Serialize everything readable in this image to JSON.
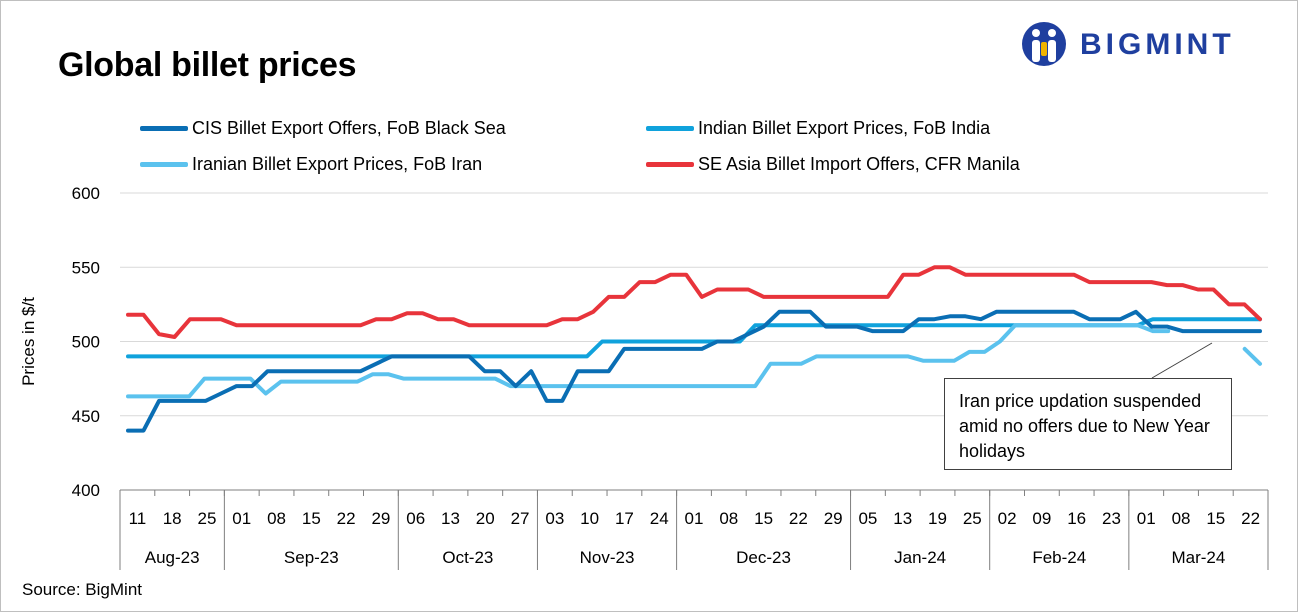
{
  "header": {
    "title": "Global billet prices",
    "logo_text": "BIGMINT"
  },
  "source": "Source: BigMint",
  "annotation": "Iran price updation suspended amid no offers due to New Year holidays",
  "colors": {
    "cis": "#0a6eb4",
    "india": "#10a2dc",
    "iran": "#5bc2ee",
    "seasia": "#e8343b",
    "logo": "#1f3f9f"
  },
  "chart_data": {
    "type": "line",
    "title": "Global billet prices",
    "ylabel": "Prices in $/t",
    "ylim": [
      400,
      600
    ],
    "yticks": [
      400,
      450,
      500,
      550,
      600
    ],
    "grid": true,
    "legend_position": "top",
    "x_ticks": [
      "11",
      "18",
      "25",
      "01",
      "08",
      "15",
      "22",
      "29",
      "06",
      "13",
      "20",
      "27",
      "03",
      "10",
      "17",
      "24",
      "01",
      "08",
      "15",
      "22",
      "29",
      "05",
      "13",
      "19",
      "25",
      "02",
      "09",
      "16",
      "23",
      "01",
      "08",
      "15",
      "22"
    ],
    "months": [
      {
        "label": "Aug-23",
        "span": 3
      },
      {
        "label": "Sep-23",
        "span": 5
      },
      {
        "label": "Oct-23",
        "span": 4
      },
      {
        "label": "Nov-23",
        "span": 4
      },
      {
        "label": "Dec-23",
        "span": 5
      },
      {
        "label": "Jan-24",
        "span": 4
      },
      {
        "label": "Feb-24",
        "span": 4
      },
      {
        "label": "Mar-24",
        "span": 4
      }
    ],
    "series": [
      {
        "name": "CIS Billet Export Offers, FoB Black Sea",
        "color": "#0a6eb4",
        "values": [
          440,
          440,
          460,
          460,
          460,
          460,
          465,
          470,
          470,
          480,
          480,
          480,
          480,
          480,
          480,
          480,
          485,
          490,
          490,
          490,
          490,
          490,
          490,
          480,
          480,
          470,
          480,
          460,
          460,
          480,
          480,
          480,
          495,
          495,
          495,
          495,
          495,
          495,
          500,
          500,
          505,
          510,
          520,
          520,
          520,
          510,
          510,
          510,
          507,
          507,
          507,
          515,
          515,
          517,
          517,
          515,
          520,
          520,
          520,
          520,
          520,
          520,
          515,
          515,
          515,
          520,
          510,
          510,
          507,
          507,
          507,
          507,
          507,
          507
        ]
      },
      {
        "name": "Indian Billet Export Prices, FoB India",
        "color": "#10a2dc",
        "values": [
          490,
          490,
          490,
          490,
          490,
          490,
          490,
          490,
          490,
          490,
          490,
          490,
          490,
          490,
          490,
          490,
          490,
          490,
          490,
          490,
          490,
          490,
          490,
          490,
          490,
          490,
          490,
          490,
          490,
          490,
          490,
          500,
          500,
          500,
          500,
          500,
          500,
          500,
          500,
          500,
          500,
          511,
          511,
          511,
          511,
          511,
          511,
          511,
          511,
          511,
          511,
          511,
          511,
          511,
          511,
          511,
          511,
          511,
          511,
          511,
          511,
          511,
          511,
          511,
          511,
          511,
          511,
          515,
          515,
          515,
          515,
          515,
          515,
          515,
          515
        ]
      },
      {
        "name": "Iranian Billet Export Prices, FoB Iran",
        "color": "#5bc2ee",
        "values": [
          463,
          463,
          463,
          463,
          463,
          475,
          475,
          475,
          475,
          465,
          473,
          473,
          473,
          473,
          473,
          473,
          478,
          478,
          475,
          475,
          475,
          475,
          475,
          475,
          475,
          470,
          470,
          470,
          470,
          470,
          470,
          470,
          470,
          470,
          470,
          470,
          470,
          470,
          470,
          470,
          470,
          470,
          485,
          485,
          485,
          490,
          490,
          490,
          490,
          490,
          490,
          490,
          487,
          487,
          487,
          493,
          493,
          500,
          511,
          511,
          511,
          511,
          511,
          511,
          511,
          511,
          511,
          507,
          507,
          null,
          null,
          null,
          null,
          495,
          485
        ]
      },
      {
        "name": "SE Asia Billet Import Offers, CFR Manila",
        "color": "#e8343b",
        "values": [
          518,
          518,
          505,
          503,
          515,
          515,
          515,
          511,
          511,
          511,
          511,
          511,
          511,
          511,
          511,
          511,
          515,
          515,
          519,
          519,
          515,
          515,
          511,
          511,
          511,
          511,
          511,
          511,
          515,
          515,
          520,
          530,
          530,
          540,
          540,
          545,
          545,
          530,
          535,
          535,
          535,
          530,
          530,
          530,
          530,
          530,
          530,
          530,
          530,
          530,
          545,
          545,
          550,
          550,
          545,
          545,
          545,
          545,
          545,
          545,
          545,
          545,
          540,
          540,
          540,
          540,
          540,
          538,
          538,
          535,
          535,
          525,
          525,
          515
        ]
      }
    ]
  }
}
